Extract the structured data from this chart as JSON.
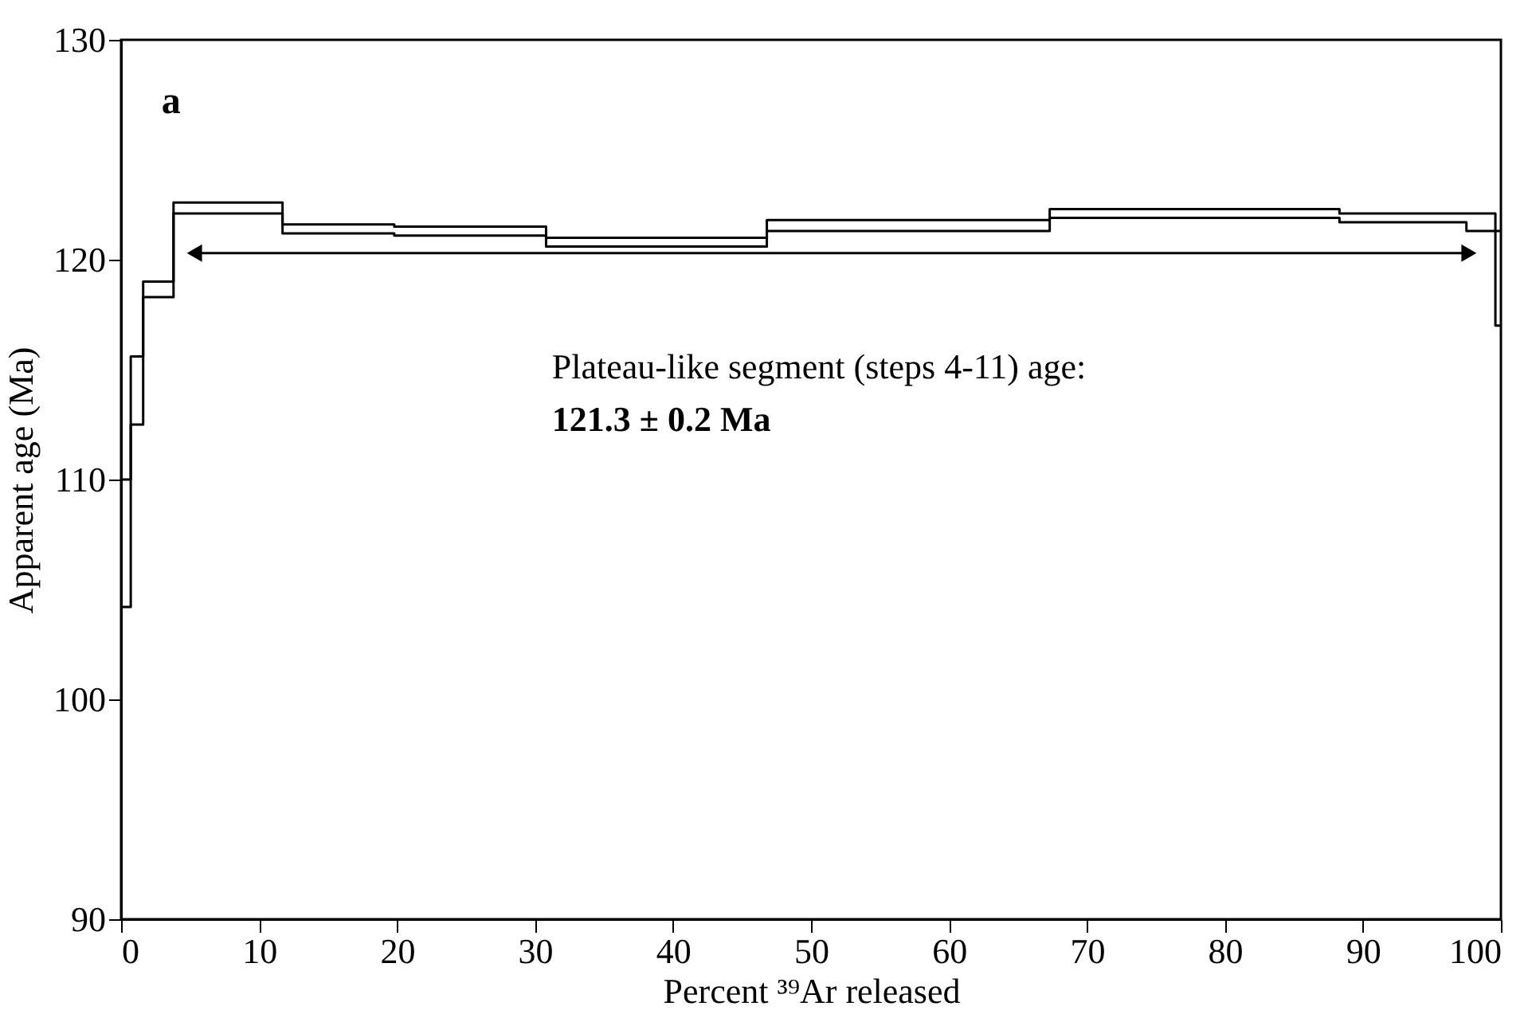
{
  "chart_data": {
    "type": "step",
    "xlabel": "Percent ³⁹Ar released",
    "ylabel": "Apparent age (Ma)",
    "x": [
      0,
      0.7,
      1.6,
      3.8,
      11.7,
      19.8,
      30.8,
      46.8,
      67.3,
      88.3,
      97.5,
      99.6,
      100
    ],
    "series": [
      {
        "color": "#000000",
        "values": [
          110.0,
          115.6,
          119.0,
          122.6,
          121.6,
          121.5,
          121.0,
          121.8,
          122.3,
          122.1,
          122.1,
          121.3,
          121.3
        ]
      },
      {
        "color": "#000000",
        "values": [
          104.2,
          112.5,
          118.3,
          122.1,
          121.2,
          121.1,
          120.6,
          121.3,
          121.9,
          121.7,
          121.3,
          117.0,
          117.0
        ]
      },
      {
        "type": "line",
        "marker": "triangle",
        "color": "#000000",
        "x": [
          5.5,
          97.5
        ],
        "values": [
          120.3,
          120.3
        ]
      }
    ],
    "xlim": [
      0,
      100
    ],
    "xticks": [
      0,
      10,
      20,
      30,
      40,
      50,
      60,
      70,
      80,
      90,
      100
    ],
    "ylim": [
      90,
      130
    ],
    "yticks": [
      90,
      100,
      110,
      120,
      130
    ],
    "grid": false,
    "marker": "none",
    "line_style": "solid",
    "annotations": [
      "a",
      "Plateau-like segment (steps 4-11) age:",
      "121.3 ± 0.2 Ma"
    ]
  }
}
